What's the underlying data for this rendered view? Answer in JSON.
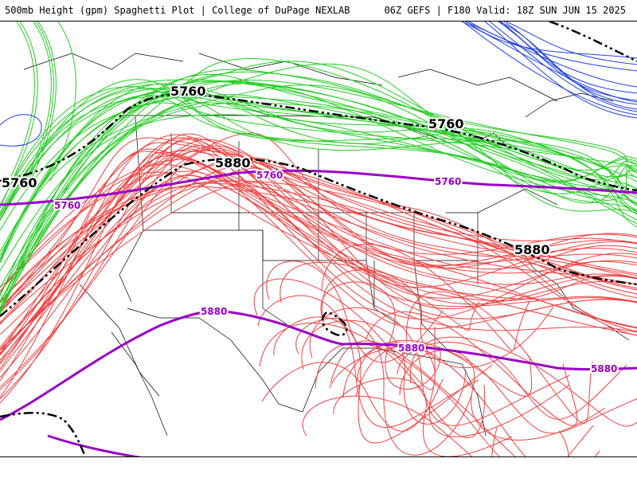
{
  "header": {
    "left_title": "500mb Height (gpm) Spaghetti Plot | College of DuPage NEXLAB",
    "right_title": "06Z GEFS | F180 Valid: 18Z SUN JUN 15 2025"
  },
  "map": {
    "mean_labels": [
      {
        "text": "5760"
      },
      {
        "text": "5760"
      },
      {
        "text": "5760"
      },
      {
        "text": "5880"
      },
      {
        "text": "5880"
      }
    ],
    "climo_labels": [
      {
        "text": "5760"
      },
      {
        "text": "5760"
      },
      {
        "text": "5760"
      },
      {
        "text": "5880"
      },
      {
        "text": "5880"
      },
      {
        "text": "5880"
      }
    ],
    "colors": {
      "members_5880": "#f04040",
      "members_5760": "#22cc22",
      "members_cold": "#2040e0",
      "climatology": "#9a00c8",
      "ensemble_mean": "#000000",
      "borders": "#000000"
    }
  }
}
